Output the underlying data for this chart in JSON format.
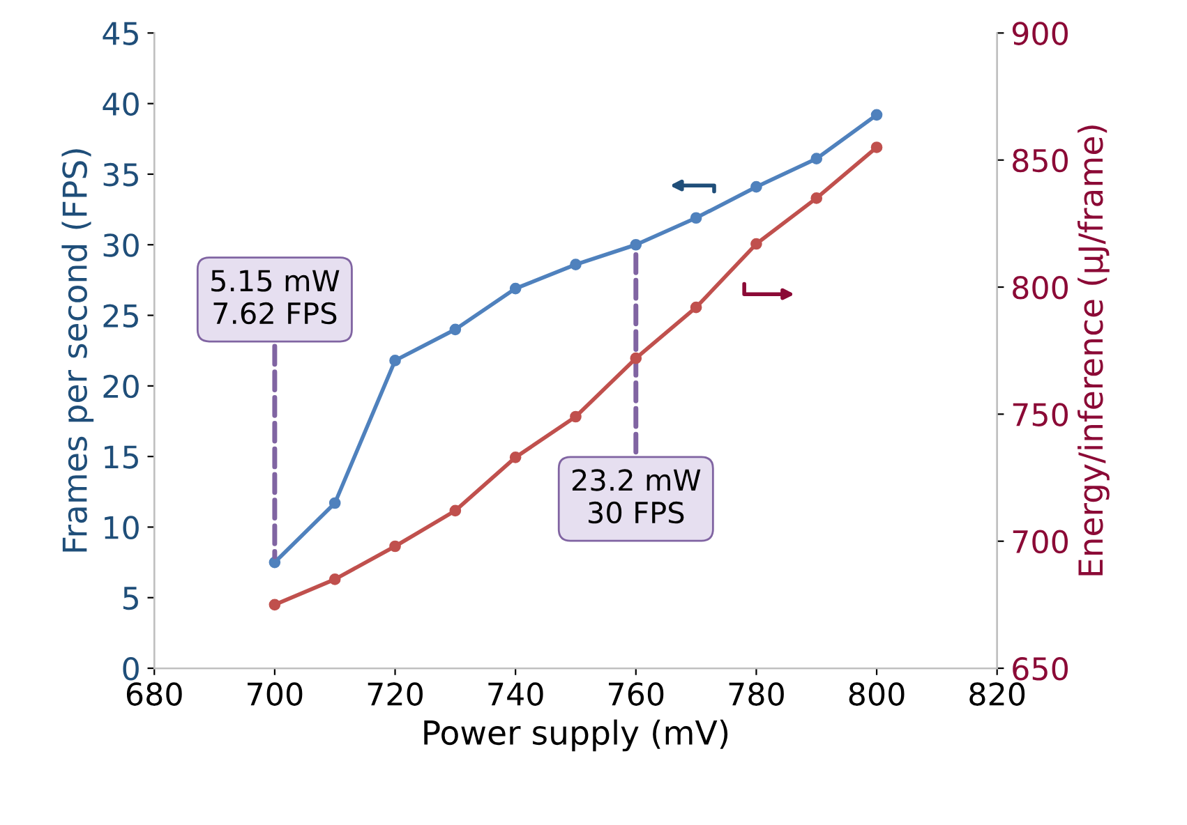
{
  "chart_data": {
    "type": "line",
    "xlabel": "Power supply (mV)",
    "ylabel": "Frames per second (FPS)",
    "y2label": "Energy/inference (µJ/frame)",
    "x": [
      700,
      710,
      720,
      730,
      740,
      750,
      760,
      770,
      780,
      790,
      800
    ],
    "series": [
      {
        "color": "#4f81bd",
        "values": [
          7.5,
          11.7,
          21.8,
          24.0,
          26.9,
          28.6,
          30.0,
          31.9,
          34.1,
          36.1,
          39.2
        ]
      },
      {
        "color": "#c0504d",
        "axis": "y2",
        "values": [
          675,
          685,
          698,
          712,
          733,
          749,
          772,
          792,
          817,
          835,
          855
        ]
      }
    ],
    "annotations": [
      {
        "text": "5.15 mW\n7.62 FPS",
        "x": 700,
        "y": 7.62
      },
      {
        "text": "23.2 mW\n30 FPS",
        "x": 760,
        "y": 30
      }
    ],
    "xlim": [
      680,
      820
    ],
    "xticks": [
      680,
      700,
      720,
      740,
      760,
      780,
      800,
      820
    ],
    "ylim": [
      0,
      45
    ],
    "yticks": [
      0,
      5,
      10,
      15,
      20,
      25,
      30,
      35,
      40,
      45
    ],
    "y2lim": [
      650,
      900
    ],
    "y2ticks": [
      650,
      700,
      750,
      800,
      850,
      900
    ],
    "marker": "circle",
    "line_style": "solid",
    "grid": false,
    "legend": false
  }
}
